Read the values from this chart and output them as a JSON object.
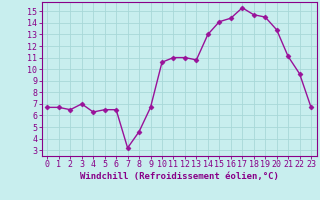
{
  "x": [
    0,
    1,
    2,
    3,
    4,
    5,
    6,
    7,
    8,
    9,
    10,
    11,
    12,
    13,
    14,
    15,
    16,
    17,
    18,
    19,
    20,
    21,
    22,
    23
  ],
  "y": [
    6.7,
    6.7,
    6.5,
    7.0,
    6.3,
    6.5,
    6.5,
    3.2,
    4.6,
    6.7,
    10.6,
    11.0,
    11.0,
    10.8,
    13.0,
    14.1,
    14.4,
    15.3,
    14.7,
    14.5,
    13.4,
    11.1,
    9.6,
    6.7
  ],
  "line_color": "#991199",
  "marker": "D",
  "markersize": 2.5,
  "linewidth": 1.0,
  "bg_color": "#c8eeee",
  "grid_color": "#a8d8d8",
  "xlabel": "Windchill (Refroidissement éolien,°C)",
  "xlabel_fontsize": 6.5,
  "ylabel_ticks": [
    3,
    4,
    5,
    6,
    7,
    8,
    9,
    10,
    11,
    12,
    13,
    14,
    15
  ],
  "ylim": [
    2.5,
    15.8
  ],
  "xlim": [
    -0.5,
    23.5
  ],
  "tick_fontsize": 6.0,
  "tick_color": "#880088",
  "axis_color": "#880088"
}
